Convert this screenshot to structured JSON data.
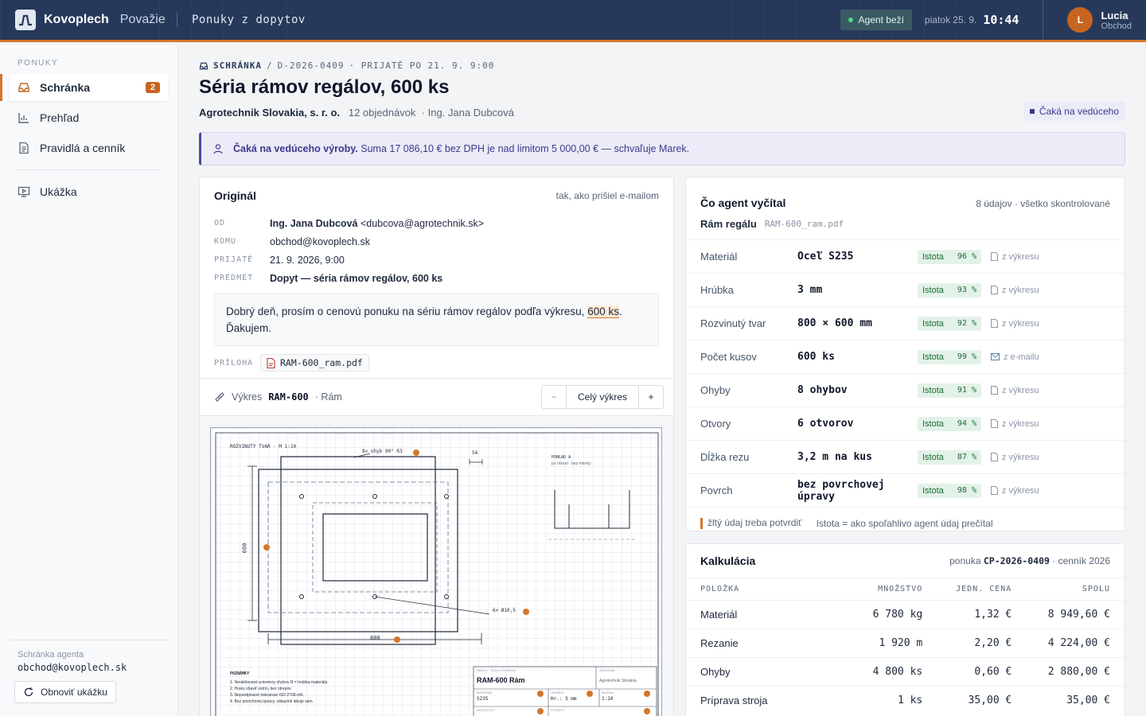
{
  "topbar": {
    "brand": "Kovoplech",
    "brand_sub": "Považie",
    "section": "Ponuky z dopytov",
    "agent_status": "Agent beží",
    "date": "piatok 25. 9.",
    "time": "10:44",
    "user_initial": "L",
    "user_name": "Lucia",
    "user_role": "Obchod"
  },
  "sidebar": {
    "group_label": "PONUKY",
    "items": [
      {
        "label": "Schránka",
        "badge": "2",
        "icon": "inbox-icon"
      },
      {
        "label": "Prehľad",
        "icon": "chart-icon"
      },
      {
        "label": "Pravidlá a cenník",
        "icon": "document-icon"
      },
      {
        "label": "Ukážka",
        "icon": "monitor-icon"
      }
    ],
    "footer_label": "Schránka agenta",
    "footer_mail": "obchod@kovoplech.sk",
    "reset_button": "Obnoviť ukážku"
  },
  "header": {
    "crumb_root": "SCHRÁNKA",
    "crumb_sep": "/",
    "crumb_id": "D-2026-0409",
    "crumb_received": "· PRIJATÉ PO 21. 9. 9:00",
    "title": "Séria rámov regálov, 600 ks",
    "company": "Agrotechnik Slovakia, s. r. o.",
    "orders": "12 objednávok",
    "contact": "· Ing. Jana Dubcová",
    "status": "Čaká na vedúceho"
  },
  "banner": {
    "strong": "Čaká na vedúceho výroby.",
    "text": "Suma 17 086,10 € bez DPH je nad limitom 5 000,00 € — schvaľuje Marek."
  },
  "original": {
    "title": "Originál",
    "note": "tak, ako prišiel e-mailom",
    "fields": [
      {
        "key": "OD",
        "value_bold": "Ing. Jana Dubcová",
        "value": "<dubcova@agrotechnik.sk>"
      },
      {
        "key": "KOMU",
        "value_bold": "",
        "value": "obchod@kovoplech.sk"
      },
      {
        "key": "PRIJATÉ",
        "value_bold": "",
        "value": "21. 9. 2026, 9:00"
      },
      {
        "key": "PREDMET",
        "value_bold": "Dopyt — séria rámov regálov, 600 ks",
        "value": ""
      }
    ],
    "body_pre": "Dobrý deň, prosím o cenovú ponuku na sériu rámov regálov podľa výkresu,",
    "body_hl": "600 ks",
    "body_post": ". Ďakujem.",
    "attachment_label": "PRÍLOHA",
    "attachment": "RAM-600_ram.pdf"
  },
  "drawing": {
    "label": "Výkres",
    "code": "RAM-600",
    "sub": "· Rám",
    "zoom_out": "−",
    "zoom_label": "Celý výkres",
    "zoom_in": "+",
    "sheet": {
      "view_title": "ROZVINUTÝ TVAR · M 1:10",
      "bend_note": "8× ohyb 90° R3",
      "dim_54": "54",
      "dim_600": "600",
      "dim_800": "800",
      "hole_note": "6× Ø10,5",
      "side_title": "POHĽAD A",
      "side_sub": "po ohnutí · bez mierky",
      "notes_title": "POZNÁMKY",
      "notes": [
        "1. Neokótované polomery ohybov R = hrúbka materiálu.",
        "2. Hrany zbaviť ostrín, bez otrepov.",
        "3. Nepredpísané tolerancie ISO 2768-mK.",
        "4. Bez povrchovej úpravy, zákazník lakuje sám."
      ],
      "tb_name_lbl": "NÁZOV · ČÍSLO VÝKRESU",
      "tb_name": "RAM-600 Rám",
      "tb_client_lbl": "ZÁKAZNÍK",
      "tb_client": "Agrotechnik Slovakia",
      "tb_mat_lbl": "MATERIÁL",
      "tb_mat": "S235",
      "tb_thick_lbl": "HRÚBKA",
      "tb_thick": "Hr.: 3 mm",
      "tb_scale_lbl": "MIERKA",
      "tb_scale": "1:10",
      "tb_qty_lbl": "MNOŽSTVO",
      "tb_surf_lbl": "POVRCH"
    }
  },
  "extraction": {
    "title": "Čo agent vyčítal",
    "note": "8 údajov · všetko skontrolované",
    "part": "Rám regálu",
    "file": "RAM-600_ram.pdf",
    "rows": [
      {
        "label": "Materiál",
        "value": "Oceľ S235",
        "conf": "96",
        "source": "z výkresu",
        "src_icon": "file-icon"
      },
      {
        "label": "Hrúbka",
        "value": "3 mm",
        "conf": "93",
        "source": "z výkresu",
        "src_icon": "file-icon"
      },
      {
        "label": "Rozvinutý tvar",
        "value": "800 × 600 mm",
        "conf": "92",
        "source": "z výkresu",
        "src_icon": "file-icon"
      },
      {
        "label": "Počet kusov",
        "value": "600 ks",
        "conf": "99",
        "source": "z e-mailu",
        "src_icon": "mail-icon"
      },
      {
        "label": "Ohyby",
        "value": "8 ohybov",
        "conf": "91",
        "source": "z výkresu",
        "src_icon": "file-icon"
      },
      {
        "label": "Otvory",
        "value": "6 otvorov",
        "conf": "94",
        "source": "z výkresu",
        "src_icon": "file-icon"
      },
      {
        "label": "Dĺžka rezu",
        "value": "3,2 m na kus",
        "conf": "87",
        "source": "z výkresu",
        "src_icon": "file-icon"
      },
      {
        "label": "Povrch",
        "value": "bez povrchovej úpravy",
        "conf": "98",
        "source": "z výkresu",
        "src_icon": "file-icon"
      }
    ],
    "conf_label": "Istota",
    "conf_unit": "%",
    "legend_yellow": "žltý údaj treba potvrdiť",
    "legend_conf": "Istota = ako spoľahlivo agent údaj prečítal"
  },
  "calc": {
    "title": "Kalkulácia",
    "note_pre": "ponuka",
    "quote": "CP-2026-0409",
    "note_post": "· cenník 2026",
    "headers": [
      "POLOŽKA",
      "MNOŽSTVO",
      "JEDN. CENA",
      "SPOLU"
    ],
    "rows": [
      {
        "item": "Materiál",
        "qty": "6 780 kg",
        "unit": "1,32 €",
        "total": "8 949,60 €"
      },
      {
        "item": "Rezanie",
        "qty": "1 920 m",
        "unit": "2,20 €",
        "total": "4 224,00 €"
      },
      {
        "item": "Ohyby",
        "qty": "4 800 ks",
        "unit": "0,60 €",
        "total": "2 880,00 €"
      },
      {
        "item": "Príprava stroja",
        "qty": "1 ks",
        "unit": "35,00 €",
        "total": "35,00 €"
      }
    ]
  },
  "colors": {
    "topbar": "#26395b",
    "accent": "#d4762c",
    "pending": "#3b3a8c",
    "confidence": "#1c6b3a"
  }
}
